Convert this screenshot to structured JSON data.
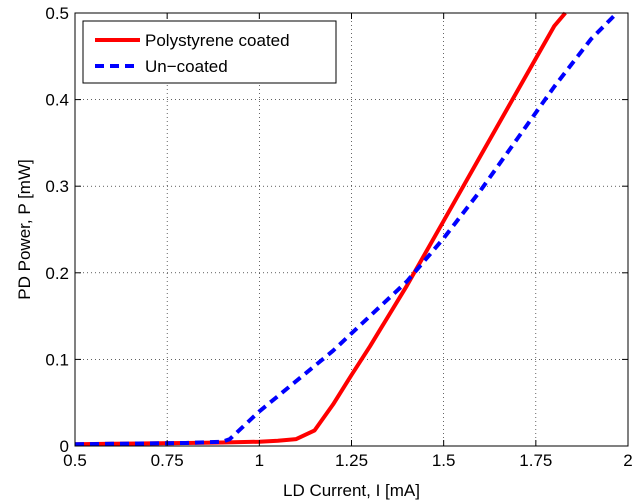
{
  "chart_data": {
    "type": "line",
    "xlabel": "LD Current, I [mA]",
    "ylabel": "PD Power, P [mW]",
    "xlim": [
      0.5,
      2.0
    ],
    "ylim": [
      0,
      0.5
    ],
    "x_ticks": [
      0.5,
      0.75,
      1,
      1.25,
      1.5,
      1.75,
      2
    ],
    "x_tick_labels": [
      "0.5",
      "0.75",
      "1",
      "1.25",
      "1.5",
      "1.75",
      "2"
    ],
    "y_ticks": [
      0,
      0.1,
      0.2,
      0.3,
      0.4,
      0.5
    ],
    "y_tick_labels": [
      "0",
      "0.1",
      "0.2",
      "0.3",
      "0.4",
      "0.5"
    ],
    "grid": true,
    "legend_position": "top-left",
    "series": [
      {
        "name": "Polystyrene coated",
        "color": "#ff0000",
        "style": "solid",
        "x": [
          0.5,
          0.6,
          0.7,
          0.8,
          0.9,
          1.0,
          1.05,
          1.1,
          1.15,
          1.2,
          1.25,
          1.3,
          1.4,
          1.5,
          1.6,
          1.7,
          1.8,
          1.83
        ],
        "y": [
          0.002,
          0.0025,
          0.003,
          0.0035,
          0.004,
          0.005,
          0.006,
          0.008,
          0.018,
          0.048,
          0.082,
          0.115,
          0.185,
          0.26,
          0.335,
          0.41,
          0.485,
          0.5
        ]
      },
      {
        "name": "Un−coated",
        "color": "#0000ff",
        "style": "dashed",
        "x": [
          0.5,
          0.6,
          0.7,
          0.8,
          0.9,
          0.92,
          1.0,
          1.1,
          1.2,
          1.3,
          1.4,
          1.5,
          1.6,
          1.7,
          1.8,
          1.9,
          1.97
        ],
        "y": [
          0.002,
          0.0025,
          0.003,
          0.0035,
          0.005,
          0.008,
          0.04,
          0.075,
          0.11,
          0.15,
          0.19,
          0.24,
          0.295,
          0.355,
          0.415,
          0.47,
          0.5
        ]
      }
    ]
  }
}
